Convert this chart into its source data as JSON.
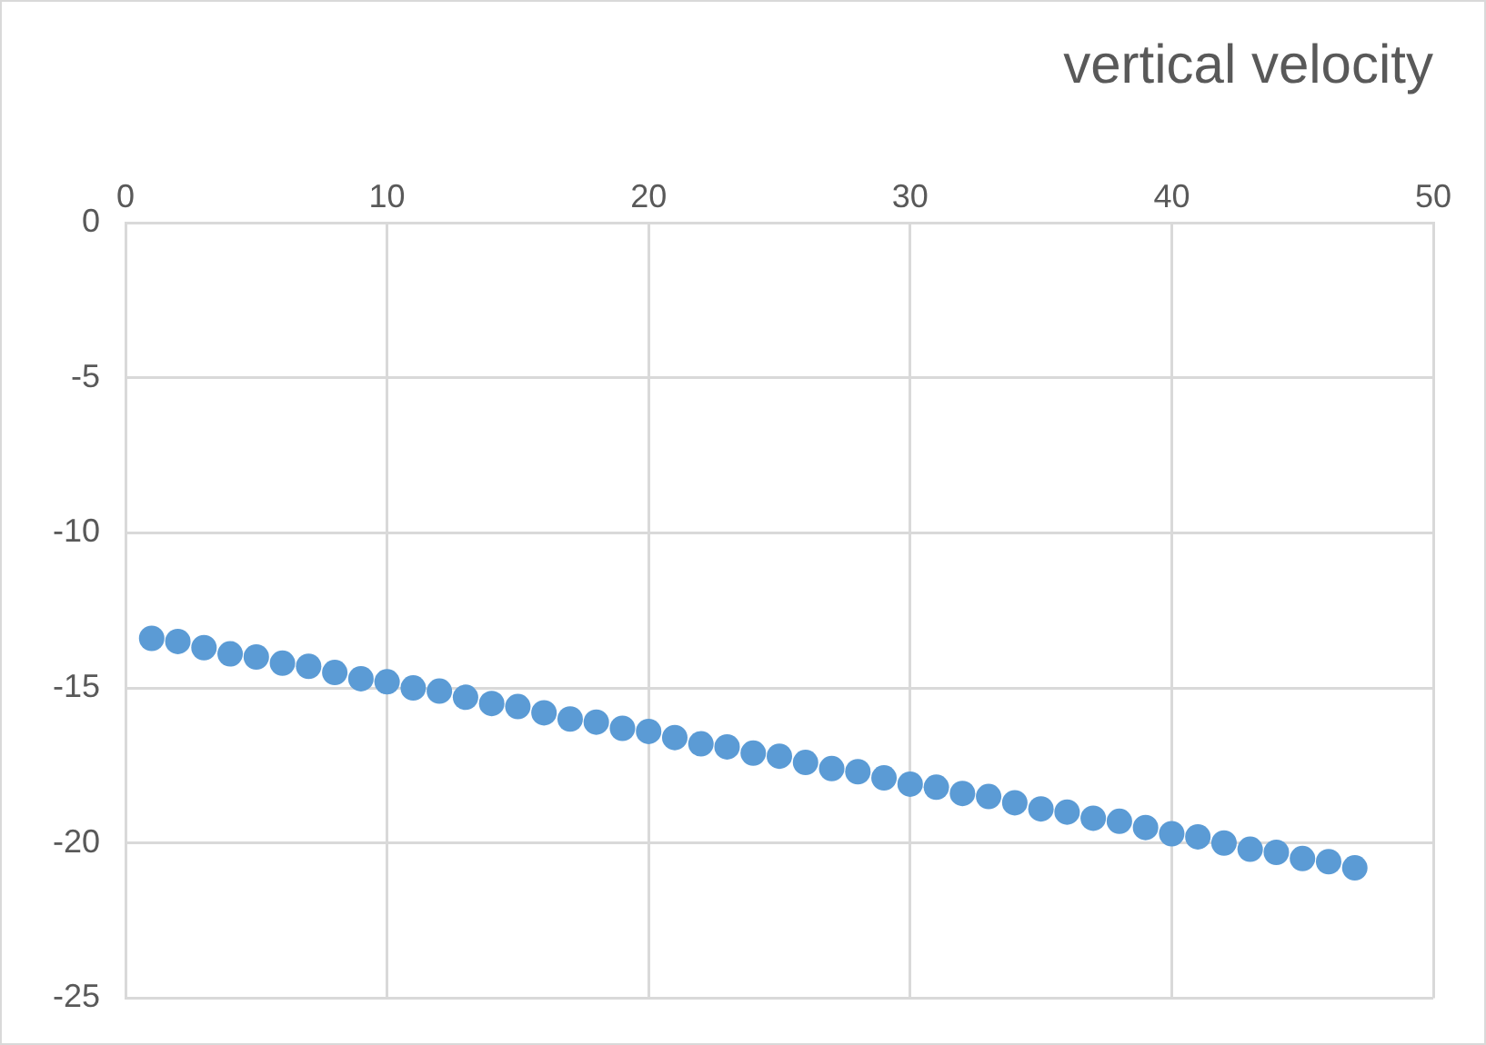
{
  "chart_data": {
    "type": "scatter",
    "title": "vertical velocity",
    "x": [
      1,
      2,
      3,
      4,
      5,
      6,
      7,
      8,
      9,
      10,
      11,
      12,
      13,
      14,
      15,
      16,
      17,
      18,
      19,
      20,
      21,
      22,
      23,
      24,
      25,
      26,
      27,
      28,
      29,
      30,
      31,
      32,
      33,
      34,
      35,
      36,
      37,
      38,
      39,
      40,
      41,
      42,
      43,
      44,
      45,
      46,
      47
    ],
    "series": [
      {
        "color": "#5b9bd5",
        "values": [
          -13.4,
          -13.5,
          -13.7,
          -13.9,
          -14.0,
          -14.2,
          -14.3,
          -14.5,
          -14.7,
          -14.8,
          -15.0,
          -15.1,
          -15.3,
          -15.5,
          -15.6,
          -15.8,
          -16.0,
          -16.1,
          -16.3,
          -16.4,
          -16.6,
          -16.8,
          -16.9,
          -17.1,
          -17.2,
          -17.4,
          -17.6,
          -17.7,
          -17.9,
          -18.1,
          -18.2,
          -18.4,
          -18.5,
          -18.7,
          -18.9,
          -19.0,
          -19.2,
          -19.3,
          -19.5,
          -19.7,
          -19.8,
          -20.0,
          -20.2,
          -20.3,
          -20.5,
          -20.6,
          -20.8
        ]
      }
    ],
    "xlim": [
      0,
      50
    ],
    "xticks": [
      0,
      10,
      20,
      30,
      40,
      50
    ],
    "ylim": [
      -25,
      0
    ],
    "yticks": [
      -25,
      -20,
      -15,
      -10,
      -5,
      0
    ],
    "grid": true,
    "legend": false,
    "marker": "circle"
  }
}
